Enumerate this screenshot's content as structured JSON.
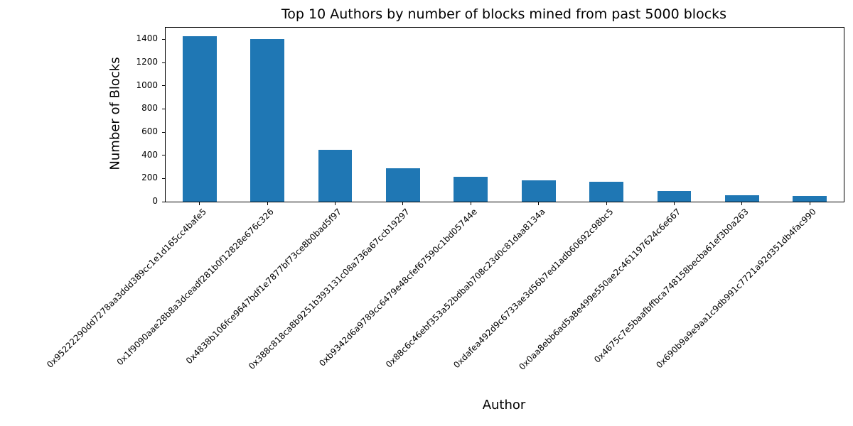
{
  "chart_data": {
    "type": "bar",
    "title": "Top 10 Authors by number of blocks mined from past 5000 blocks",
    "xlabel": "Author",
    "ylabel": "Number of Blocks",
    "categories": [
      "0x95222290dd7278aa3ddd389cc1e1d165cc4bafe5",
      "0x1f9090aae28b8a3dceadf281b0f12828e676c326",
      "0x4838b106fce9647bdf1e7877bf73ce8b0bad5f97",
      "0x388c818ca8b9251b393131c08a736a67ccb19297",
      "0xb9342d6a9789cc6479e48cfef67590c1bd05744e",
      "0x88c6c46ebf353a52bdbab708c23d0c81daa8134a",
      "0xdafea492d9c6733ae3d56b7ed1adb60692c98bc5",
      "0x0aa8ebb6ad5a8e499e550ae2c461197624c6e667",
      "0x4675c7e5baafbffbca748158becba61ef3b0a263",
      "0x690b9a9e9aa1c9db991c7721a92d351db4fac990"
    ],
    "values": [
      1425,
      1400,
      447,
      287,
      215,
      185,
      170,
      92,
      57,
      52
    ],
    "ylim": [
      0,
      1500
    ],
    "yticks": [
      0,
      200,
      400,
      600,
      800,
      1000,
      1200,
      1400
    ],
    "bar_color": "#1f77b4",
    "grid": false,
    "legend": "none",
    "bar_width_fraction": 0.5
  }
}
